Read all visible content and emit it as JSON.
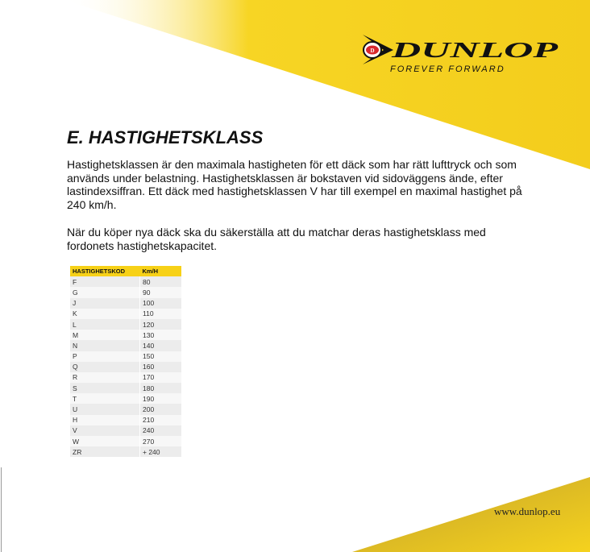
{
  "brand": {
    "name": "DUNLOP",
    "tagline": "FOREVER FORWARD",
    "emblem_letter": "D",
    "yellow": "#f5d11c",
    "red": "#d8282e"
  },
  "title": "E. HASTIGHETSKLASS",
  "paragraphs": [
    "Hastighetsklassen är den maximala hastigheten för ett däck som har rätt lufttryck och som används under belastning. Hastighetsklassen är bokstaven vid sidoväggens ände, efter lastindexsiffran. Ett däck med hastighetsklassen V har till exempel en maximal hastighet på 240 km/h.",
    "När du köper nya däck ska du säkerställa att du matchar deras hastighetsklass med fordonets hastighetskapacitet."
  ],
  "table": {
    "headers": [
      "HASTIGHETSKOD",
      "Km/H"
    ],
    "rows": [
      [
        "F",
        "80"
      ],
      [
        "G",
        "90"
      ],
      [
        "J",
        "100"
      ],
      [
        "K",
        "110"
      ],
      [
        "L",
        "120"
      ],
      [
        "M",
        "130"
      ],
      [
        "N",
        "140"
      ],
      [
        "P",
        "150"
      ],
      [
        "Q",
        "160"
      ],
      [
        "R",
        "170"
      ],
      [
        "S",
        "180"
      ],
      [
        "T",
        "190"
      ],
      [
        "U",
        "200"
      ],
      [
        "H",
        "210"
      ],
      [
        "V",
        "240"
      ],
      [
        "W",
        "270"
      ],
      [
        "ZR",
        "+ 240"
      ]
    ]
  },
  "footer": {
    "url": "www.dunlop.eu"
  }
}
